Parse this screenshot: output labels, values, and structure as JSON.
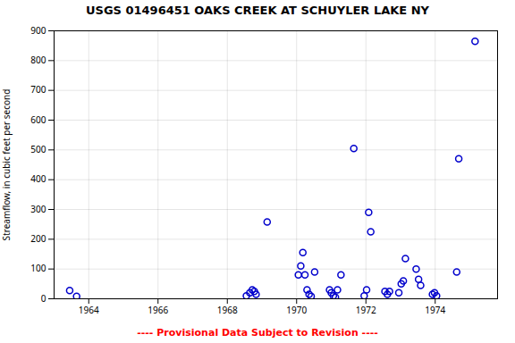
{
  "chart_data": {
    "type": "scatter",
    "title": "USGS 01496451 OAKS CREEK AT SCHUYLER LAKE NY",
    "ylabel": "Streamflow, in cubic feet per second",
    "annotations": [
      {
        "text": "---- Provisional Data Subject to Revision ----",
        "color": "#ff0000"
      }
    ],
    "x": [
      1963.45,
      1963.65,
      1968.55,
      1968.65,
      1968.72,
      1968.78,
      1968.83,
      1969.15,
      1970.05,
      1970.12,
      1970.18,
      1970.24,
      1970.3,
      1970.36,
      1970.42,
      1970.52,
      1970.95,
      1971.0,
      1971.06,
      1971.12,
      1971.18,
      1971.28,
      1971.65,
      1971.95,
      1972.02,
      1972.08,
      1972.14,
      1972.55,
      1972.62,
      1972.68,
      1972.95,
      1973.02,
      1973.08,
      1973.14,
      1973.45,
      1973.52,
      1973.58,
      1973.92,
      1973.98,
      1974.04,
      1974.62,
      1974.68,
      1975.15
    ],
    "values": [
      28,
      8,
      10,
      20,
      30,
      25,
      15,
      258,
      80,
      110,
      155,
      80,
      30,
      15,
      8,
      90,
      30,
      20,
      10,
      5,
      30,
      80,
      505,
      10,
      30,
      290,
      225,
      25,
      15,
      25,
      20,
      50,
      60,
      135,
      100,
      65,
      45,
      15,
      20,
      10,
      90,
      470,
      865
    ],
    "color": "#0000cc",
    "marker": "circle",
    "xlim": [
      1963.0,
      1975.8
    ],
    "xticks": [
      1964,
      1966,
      1968,
      1970,
      1972,
      1974
    ],
    "ylim": [
      0,
      900
    ],
    "yticks": [
      0,
      100,
      200,
      300,
      400,
      500,
      600,
      700,
      800,
      900
    ],
    "grid": true
  }
}
